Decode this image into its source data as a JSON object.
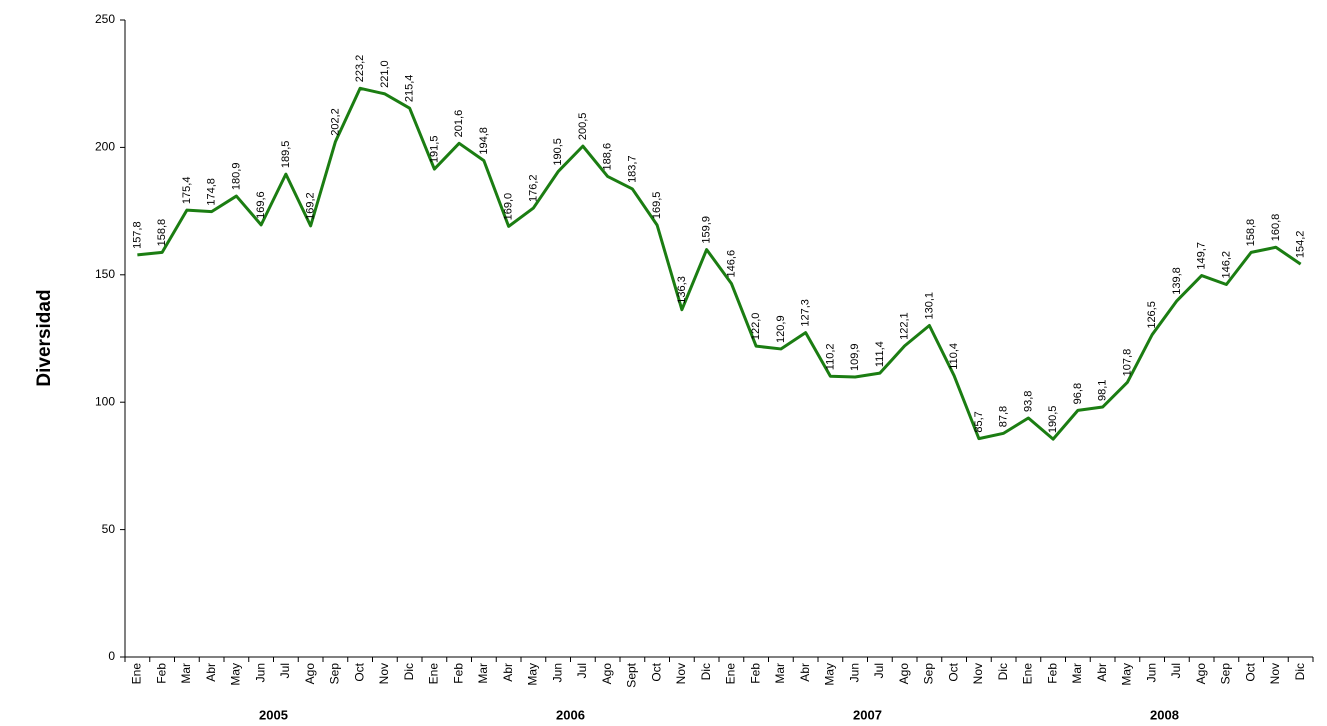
{
  "chart_data": {
    "type": "line",
    "ylabel": "Diversidad",
    "categories": [
      "Ene",
      "Feb",
      "Mar",
      "Abr",
      "May",
      "Jun",
      "Jul",
      "Ago",
      "Sep",
      "Oct",
      "Nov",
      "Dic",
      "Ene",
      "Feb",
      "Mar",
      "Abr",
      "May",
      "Jun",
      "Jul",
      "Ago",
      "Sept",
      "Oct",
      "Nov",
      "Dic",
      "Ene",
      "Feb",
      "Mar",
      "Abr",
      "May",
      "Jun",
      "Jul",
      "Ago",
      "Sep",
      "Oct",
      "Nov",
      "Dic",
      "Ene",
      "Feb",
      "Mar",
      "Abr",
      "May",
      "Jun",
      "Jul",
      "Ago",
      "Sep",
      "Oct",
      "Nov",
      "Dic"
    ],
    "groups": [
      "2005",
      "2006",
      "2007",
      "2008"
    ],
    "values": [
      157.8,
      158.8,
      175.4,
      174.8,
      180.9,
      169.6,
      189.5,
      169.2,
      202.2,
      223.2,
      221.0,
      215.4,
      191.5,
      201.6,
      194.8,
      169.0,
      176.2,
      190.5,
      200.5,
      188.6,
      183.7,
      169.5,
      136.3,
      159.9,
      146.6,
      122.0,
      120.9,
      127.3,
      110.2,
      109.9,
      111.4,
      122.1,
      130.1,
      110.4,
      85.7,
      87.8,
      93.8,
      85.5,
      96.8,
      98.1,
      107.8,
      126.5,
      139.8,
      149.7,
      146.2,
      158.8,
      160.8,
      154.2
    ],
    "value_labels": [
      "157,8",
      "158,8",
      "175,4",
      "174,8",
      "180,9",
      "169,6",
      "189,5",
      "169,2",
      "202,2",
      "223,2",
      "221,0",
      "215,4",
      "191,5",
      "201,6",
      "194,8",
      "169,0",
      "176,2",
      "190,5",
      "200,5",
      "188,6",
      "183,7",
      "169,5",
      "136,3",
      "159,9",
      "146,6",
      "122,0",
      "120,9",
      "127,3",
      "110,2",
      "109,9",
      "111,4",
      "122,1",
      "130,1",
      "110,4",
      "85,7",
      "87,8",
      "93,8",
      null,
      "96,8",
      "98,1",
      "107,8",
      "126,5",
      "139,8",
      "149,7",
      "146,2",
      "158,8",
      "160,8",
      "154,2"
    ],
    "annotations": [
      "190,5"
    ],
    "color": "#1b7d12",
    "ylim": [
      0,
      250
    ],
    "yticks": [
      0,
      50,
      100,
      150,
      200,
      250
    ],
    "grid": false
  }
}
